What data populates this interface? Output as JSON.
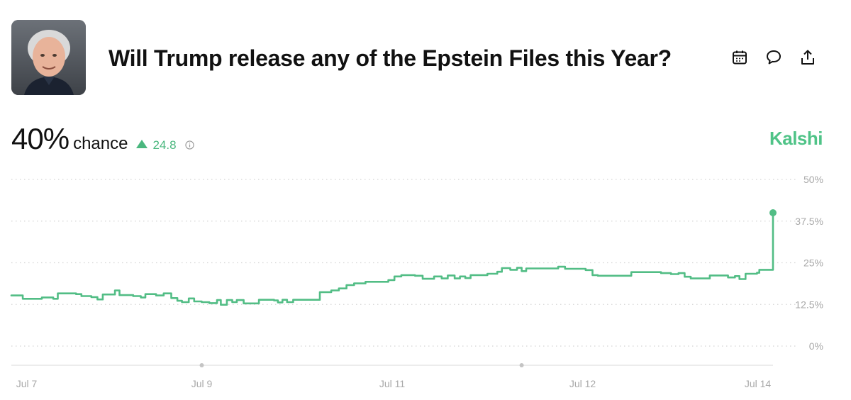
{
  "market": {
    "title": "Will Trump release any of the Epstein Files this Year?",
    "avatar_alt": "portrait-photo"
  },
  "actions": [
    {
      "icon": "calendar-icon"
    },
    {
      "icon": "comment-icon"
    },
    {
      "icon": "share-icon"
    }
  ],
  "stats": {
    "chance_value": "40%",
    "chance_label": "chance",
    "delta": "24.8",
    "delta_direction": "up"
  },
  "brand": {
    "name": "Kalshi",
    "color": "#4fc387"
  },
  "colors": {
    "line": "#52bd85",
    "grid": "#d4d4d4",
    "axis_text": "#a9a9a9"
  },
  "chart_data": {
    "type": "line",
    "title": "",
    "xlabel": "",
    "ylabel": "",
    "ylim": [
      0,
      50
    ],
    "y_ticks": [
      0,
      12.5,
      25,
      37.5,
      50
    ],
    "y_tick_labels": [
      "0%",
      "12.5%",
      "25%",
      "37.5%",
      "50%"
    ],
    "x_tick_labels": [
      "Jul 7",
      "Jul 9",
      "Jul 11",
      "Jul 12",
      "Jul 14"
    ],
    "x_range": [
      0,
      100
    ],
    "x_ticks": [
      2,
      25,
      50,
      75,
      98
    ],
    "grid": true,
    "series": [
      {
        "values": [
          [
            0,
            15.2
          ],
          [
            1,
            15.2
          ],
          [
            1.5,
            14.2
          ],
          [
            3.5,
            14.2
          ],
          [
            4,
            14.6
          ],
          [
            5,
            14.6
          ],
          [
            5.5,
            14.2
          ],
          [
            6.1,
            15.8
          ],
          [
            8.5,
            15.6
          ],
          [
            9.2,
            15
          ],
          [
            10.5,
            14.7
          ],
          [
            11.3,
            14
          ],
          [
            12,
            15.5
          ],
          [
            13.6,
            16.7
          ],
          [
            14.2,
            15.3
          ],
          [
            16,
            15
          ],
          [
            17,
            14.6
          ],
          [
            17.6,
            15.6
          ],
          [
            19,
            15.2
          ],
          [
            20,
            15.8
          ],
          [
            21,
            14.4
          ],
          [
            21.8,
            13.6
          ],
          [
            22.4,
            13.2
          ],
          [
            23.3,
            14.3
          ],
          [
            24,
            13.4
          ],
          [
            25,
            13.2
          ],
          [
            26,
            12.9
          ],
          [
            27,
            13.8
          ],
          [
            27.5,
            12.4
          ],
          [
            28.3,
            13.8
          ],
          [
            29,
            13.2
          ],
          [
            29.6,
            13.8
          ],
          [
            30.5,
            12.8
          ],
          [
            31.8,
            12.8
          ],
          [
            32.5,
            13.9
          ],
          [
            34.5,
            13.7
          ],
          [
            35,
            13.1
          ],
          [
            35.6,
            13.9
          ],
          [
            36.2,
            13.2
          ],
          [
            37,
            13.9
          ],
          [
            39.8,
            13.9
          ],
          [
            40.5,
            16.2
          ],
          [
            42,
            16.7
          ],
          [
            43,
            17.3
          ],
          [
            44,
            18.3
          ],
          [
            45,
            18.8
          ],
          [
            46.5,
            19.3
          ],
          [
            49.5,
            19.8
          ],
          [
            50.3,
            20.9
          ],
          [
            51.2,
            21.3
          ],
          [
            53,
            21.1
          ],
          [
            54,
            20.2
          ],
          [
            55.5,
            20.9
          ],
          [
            56.5,
            20.3
          ],
          [
            57.3,
            21.2
          ],
          [
            58.2,
            20.3
          ],
          [
            58.9,
            20.9
          ],
          [
            59.6,
            20.4
          ],
          [
            60.3,
            21.3
          ],
          [
            62.5,
            21.7
          ],
          [
            63.8,
            22.3
          ],
          [
            64.4,
            23.4
          ],
          [
            65.5,
            22.9
          ],
          [
            66.4,
            23.5
          ],
          [
            67,
            22.5
          ],
          [
            67.6,
            23.3
          ],
          [
            71,
            23.3
          ],
          [
            71.8,
            23.8
          ],
          [
            72.7,
            23.2
          ],
          [
            75.4,
            22.8
          ],
          [
            76.3,
            21.3
          ],
          [
            77,
            21.1
          ],
          [
            80.8,
            21.1
          ],
          [
            81.4,
            22.2
          ],
          [
            85.3,
            21.9
          ],
          [
            86.6,
            21.6
          ],
          [
            87.6,
            21.9
          ],
          [
            88.4,
            20.8
          ],
          [
            89.2,
            20.3
          ],
          [
            91.3,
            20.3
          ],
          [
            91.7,
            21.2
          ],
          [
            93.6,
            21.2
          ],
          [
            94.1,
            20.6
          ],
          [
            95,
            21
          ],
          [
            95.6,
            20.1
          ],
          [
            96.4,
            21.7
          ],
          [
            97.9,
            22
          ],
          [
            98.2,
            22.9
          ],
          [
            99.3,
            22.9
          ],
          [
            100,
            40
          ]
        ]
      }
    ]
  }
}
